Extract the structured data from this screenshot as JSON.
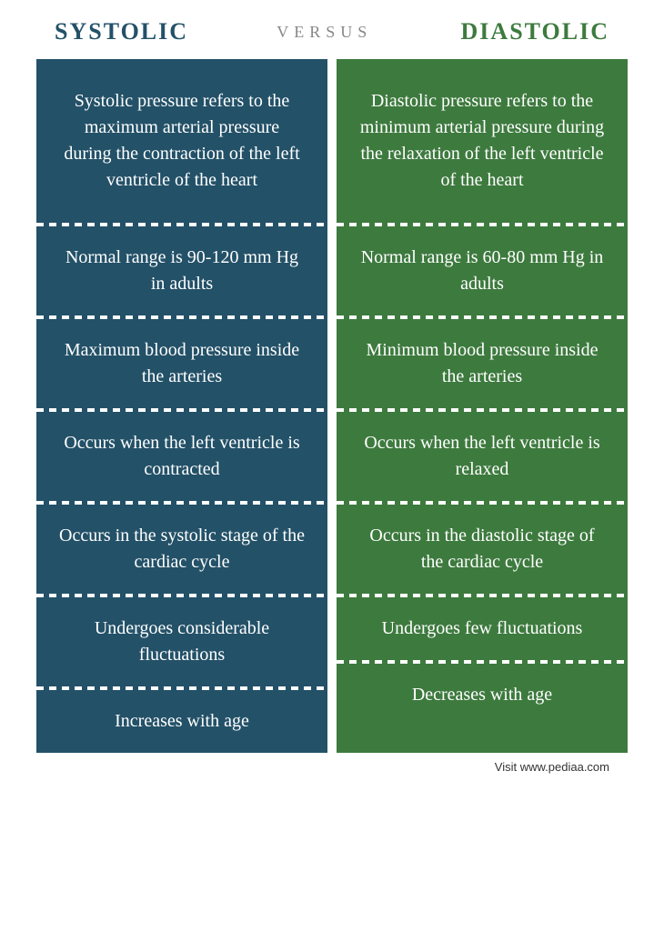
{
  "header": {
    "left": "SYSTOLIC",
    "center": "VERSUS",
    "right": "DIASTOLIC"
  },
  "colors": {
    "systolic_bg": "#235168",
    "diastolic_bg": "#3d7a3e",
    "systolic_text": "#235168",
    "diastolic_text": "#3d7a3e"
  },
  "rows": {
    "systolic": [
      "Systolic pressure refers to the maximum arterial pressure during the contraction of the left ventricle of the heart",
      "Normal range is 90-120 mm Hg in adults",
      "Maximum blood pressure inside the arteries",
      "Occurs when the left ventricle is contracted",
      "Occurs in the systolic stage of the cardiac cycle",
      "Undergoes considerable fluctuations",
      "Increases with age"
    ],
    "diastolic": [
      "Diastolic pressure refers to the minimum arterial pressure during the relaxation of the left ventricle of the heart",
      "Normal range is 60-80 mm Hg in adults",
      "Minimum blood pressure inside the arteries",
      "Occurs when the left ventricle is relaxed",
      "Occurs in the diastolic stage of the cardiac cycle",
      "Undergoes few fluctuations",
      "Decreases with age"
    ]
  },
  "footer": "Visit www.pediaa.com"
}
